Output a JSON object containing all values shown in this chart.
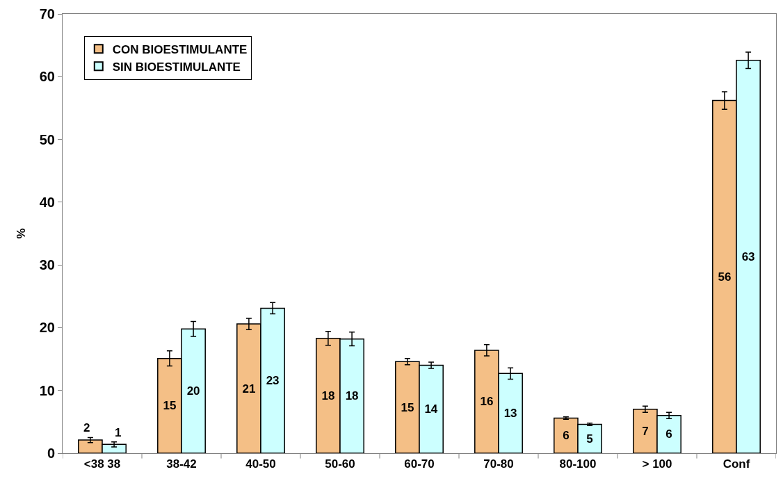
{
  "chart_data": {
    "type": "bar",
    "ylabel": "%",
    "categories": [
      "<38 38",
      "38-42",
      "40-50",
      "50-60",
      "60-70",
      "70-80",
      "80-100",
      "> 100",
      "Conf"
    ],
    "series": [
      {
        "name": "CON BIOESTIMULANTE",
        "color": "#f4bf86",
        "values": [
          2.1,
          15.1,
          20.6,
          18.3,
          14.6,
          16.4,
          5.6,
          7.0,
          56.2
        ],
        "errors": [
          0.4,
          1.2,
          0.9,
          1.1,
          0.5,
          0.9,
          0.2,
          0.5,
          1.4
        ],
        "value_labels": [
          "2",
          "15",
          "21",
          "18",
          "15",
          "16",
          "6",
          "7",
          "56"
        ]
      },
      {
        "name": "SIN BIOESTIMULANTE",
        "color": "#ccffff",
        "values": [
          1.4,
          19.8,
          23.1,
          18.2,
          14.0,
          12.7,
          4.6,
          6.0,
          62.6
        ],
        "errors": [
          0.4,
          1.2,
          0.9,
          1.1,
          0.5,
          0.9,
          0.2,
          0.5,
          1.3
        ],
        "value_labels": [
          "1",
          "20",
          "23",
          "18",
          "14",
          "13",
          "5",
          "6",
          "63"
        ]
      }
    ],
    "ylim": [
      0,
      70
    ],
    "yticks": [
      0,
      10,
      20,
      30,
      40,
      50,
      60,
      70
    ],
    "legend": "top left"
  }
}
